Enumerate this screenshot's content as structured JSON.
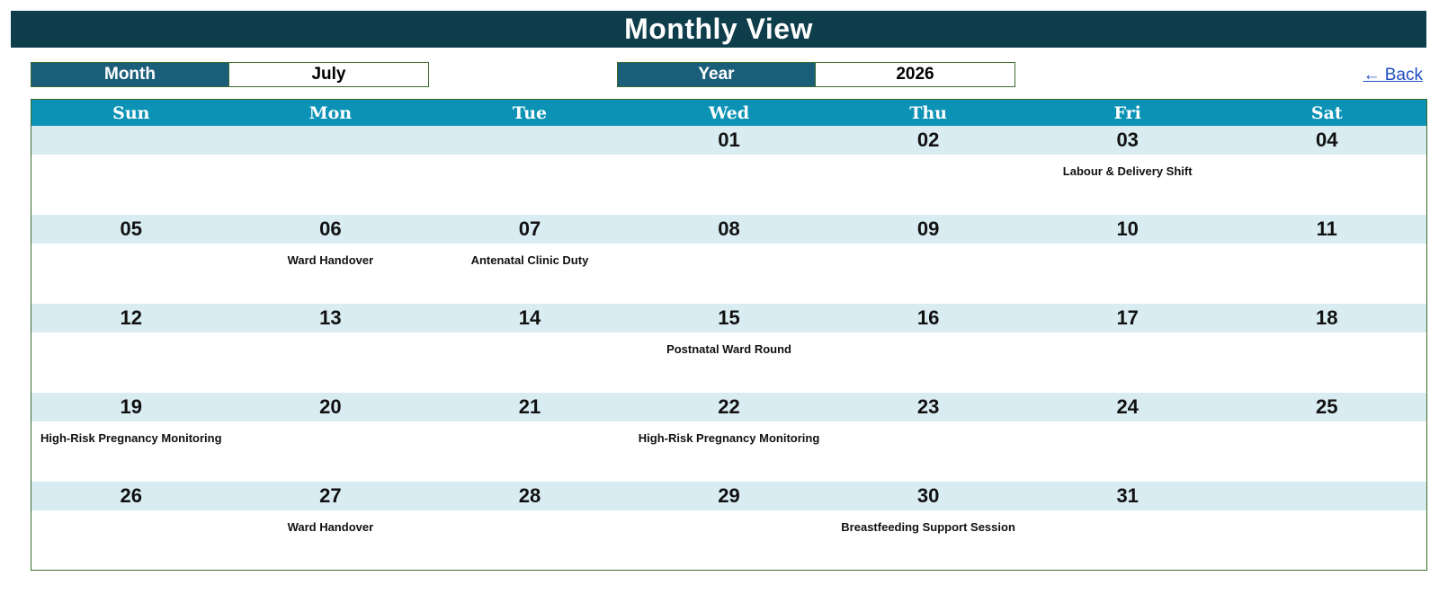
{
  "header": {
    "title": "Monthly View"
  },
  "selectors": {
    "month_label": "Month",
    "month_value": "July",
    "year_label": "Year",
    "year_value": "2026"
  },
  "nav": {
    "back_label": "← Back"
  },
  "calendar": {
    "days_of_week": [
      "Sun",
      "Mon",
      "Tue",
      "Wed",
      "Thu",
      "Fri",
      "Sat"
    ],
    "weeks": [
      {
        "dates": [
          "",
          "",
          "",
          "01",
          "02",
          "03",
          "04"
        ],
        "events": [
          "",
          "",
          "",
          "",
          "",
          "Labour & Delivery Shift",
          ""
        ]
      },
      {
        "dates": [
          "05",
          "06",
          "07",
          "08",
          "09",
          "10",
          "11"
        ],
        "events": [
          "",
          "Ward Handover",
          "Antenatal Clinic Duty",
          "",
          "",
          "",
          ""
        ]
      },
      {
        "dates": [
          "12",
          "13",
          "14",
          "15",
          "16",
          "17",
          "18"
        ],
        "events": [
          "",
          "",
          "",
          "Postnatal Ward Round",
          "",
          "",
          ""
        ]
      },
      {
        "dates": [
          "19",
          "20",
          "21",
          "22",
          "23",
          "24",
          "25"
        ],
        "events": [
          "High-Risk Pregnancy Monitoring",
          "",
          "",
          "High-Risk Pregnancy Monitoring",
          "",
          "",
          ""
        ]
      },
      {
        "dates": [
          "26",
          "27",
          "28",
          "29",
          "30",
          "31",
          ""
        ],
        "events": [
          "",
          "Ward Handover",
          "",
          "",
          "Breastfeeding Support Session",
          "",
          ""
        ]
      }
    ]
  },
  "colors": {
    "title_bg": "#0e3d4b",
    "label_bg": "#1b5e7a",
    "header_bg": "#0b92b5",
    "date_row_bg": "#d9ecf2",
    "border": "#3a6b2e",
    "link": "#1f4fbf"
  }
}
